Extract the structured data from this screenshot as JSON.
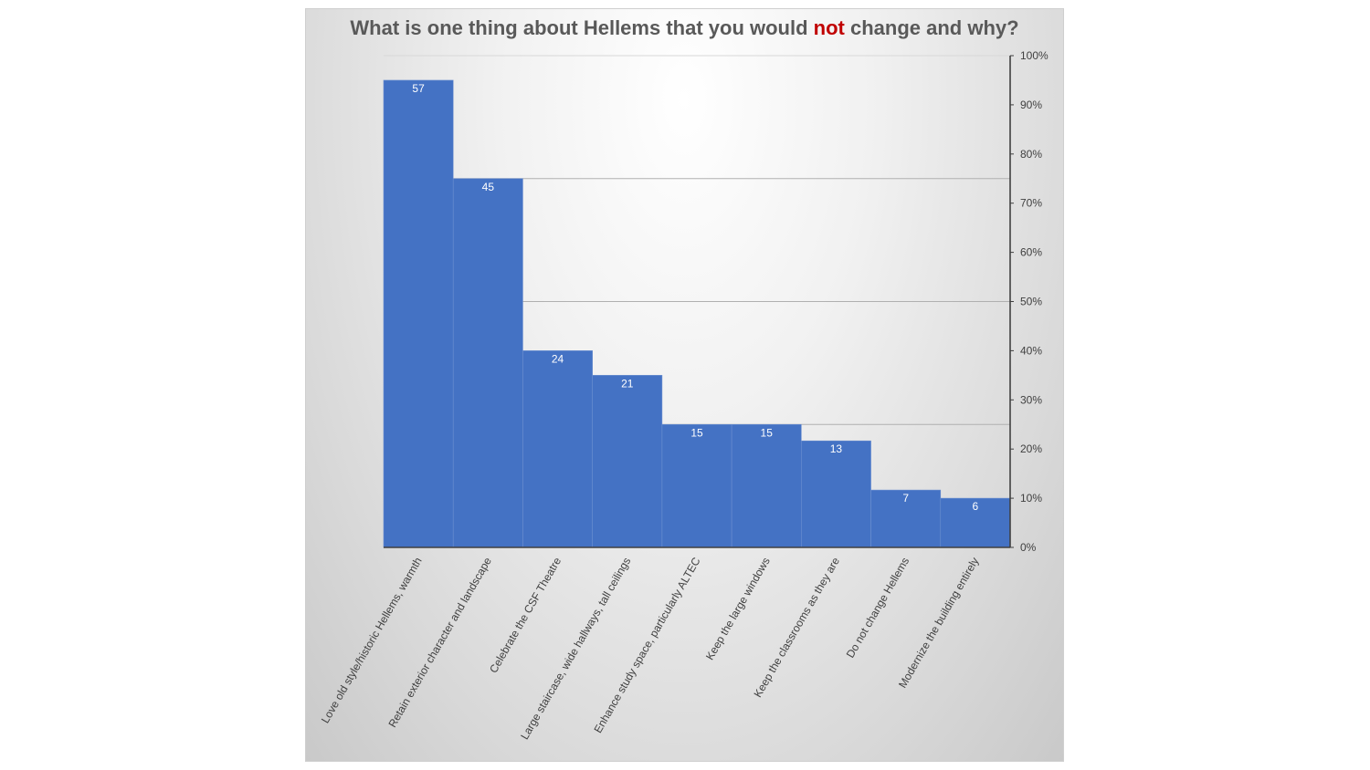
{
  "title": {
    "prefix": "What is one thing about Hellems that you would ",
    "emphasis": "not",
    "suffix": " change and why?"
  },
  "colors": {
    "bar": "#4472c4",
    "emphasis": "#c00000",
    "title": "#595959",
    "gridline": "#b0b0b0"
  },
  "chart_data": {
    "type": "bar",
    "title": "What is one thing about Hellems that you would not change and why?",
    "categories": [
      "Love old style/historic Hellems, warmth",
      "Retain exterior character and landscape",
      "Celebrate the CSF Theatre",
      "Large staircase, wide hallways, tall ceilings",
      "Enhance study space, particularly ALTEC",
      "Keep the large windows",
      "Keep the classrooms as they are",
      "Do not change Hellems",
      "Modernize the building entirely"
    ],
    "values": [
      57,
      45,
      24,
      21,
      15,
      15,
      13,
      7,
      6
    ],
    "value_scale_max": 60,
    "secondary_axis": {
      "side": "right",
      "ticks": [
        "0%",
        "10%",
        "20%",
        "30%",
        "40%",
        "50%",
        "60%",
        "70%",
        "80%",
        "90%",
        "100%"
      ],
      "range": [
        0,
        100
      ]
    },
    "gridlines": [
      15,
      30,
      45,
      60
    ],
    "data_labels": true,
    "legend": "none"
  }
}
